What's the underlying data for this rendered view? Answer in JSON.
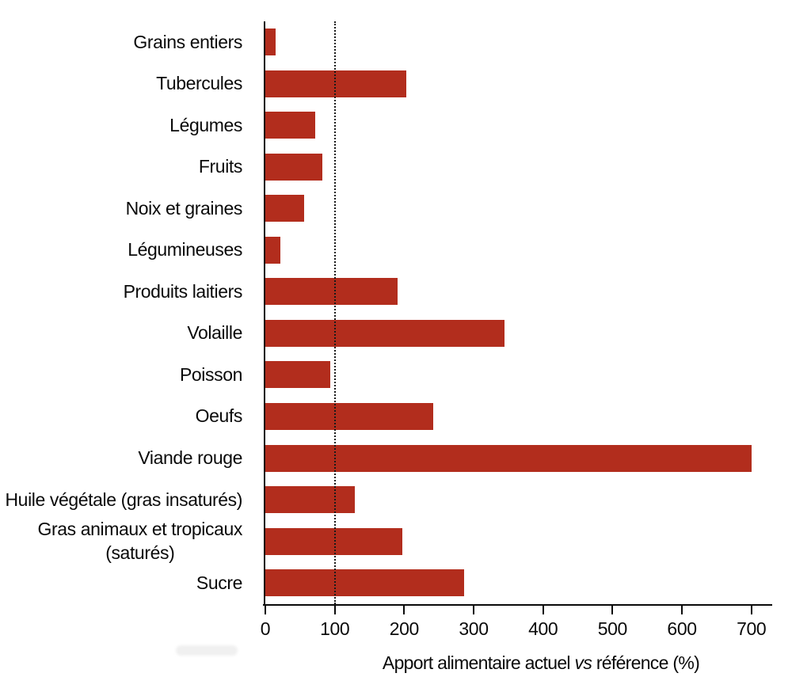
{
  "chart_data": {
    "type": "bar",
    "orientation": "horizontal",
    "categories": [
      "Grains entiers",
      "Tubercules",
      "Légumes",
      "Fruits",
      "Noix et graines",
      "Légumineuses",
      "Produits laitiers",
      "Volaille",
      "Poisson",
      "Oeufs",
      "Viande rouge",
      "Huile végétale (gras insaturés)",
      "Gras animaux et tropicaux\n(saturés)",
      "Sucre"
    ],
    "values": [
      15,
      203,
      72,
      82,
      56,
      22,
      190,
      345,
      94,
      242,
      700,
      129,
      197,
      286
    ],
    "xlabel": "Apport alimentaire actuel vs référence (%)",
    "xlabel_parts": {
      "pre": "Apport alimentaire actuel ",
      "italic": "vs",
      "post": " référence (%)"
    },
    "x_ticks": [
      0,
      100,
      200,
      300,
      400,
      500,
      600,
      700
    ],
    "xlim": [
      0,
      730
    ],
    "reference_line": 100,
    "bar_color": "#B22D1D",
    "reference_line_color": "#1a1a1a",
    "grid": false
  }
}
